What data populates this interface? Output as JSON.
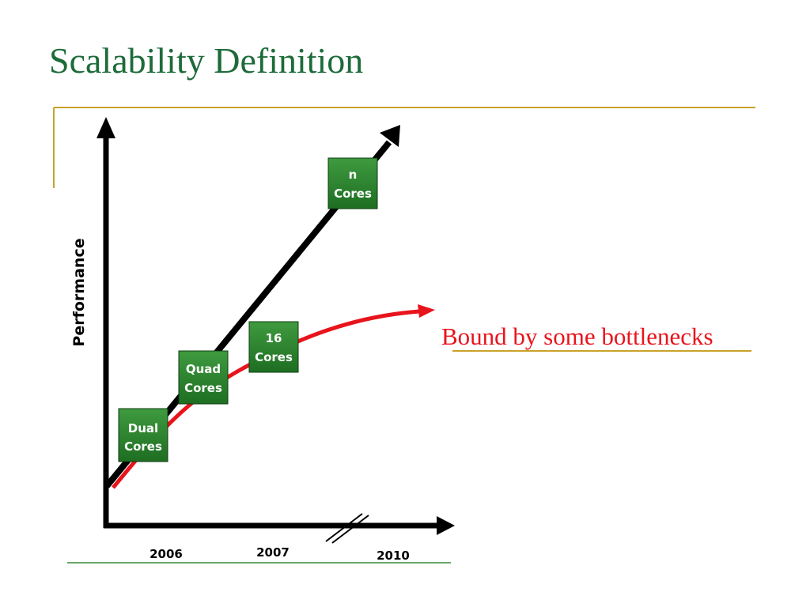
{
  "header": {
    "title": "Scalability Definition"
  },
  "diagram": {
    "y_axis_label": "Performance",
    "x_labels": [
      "2006",
      "2007",
      "2010"
    ],
    "boxes": [
      {
        "lines": [
          "Dual",
          "Cores"
        ]
      },
      {
        "lines": [
          "Quad",
          "Cores"
        ]
      },
      {
        "lines": [
          "16",
          "Cores"
        ]
      },
      {
        "lines": [
          "n",
          "Cores"
        ]
      }
    ],
    "annotation": "Bound by some bottlenecks"
  }
}
